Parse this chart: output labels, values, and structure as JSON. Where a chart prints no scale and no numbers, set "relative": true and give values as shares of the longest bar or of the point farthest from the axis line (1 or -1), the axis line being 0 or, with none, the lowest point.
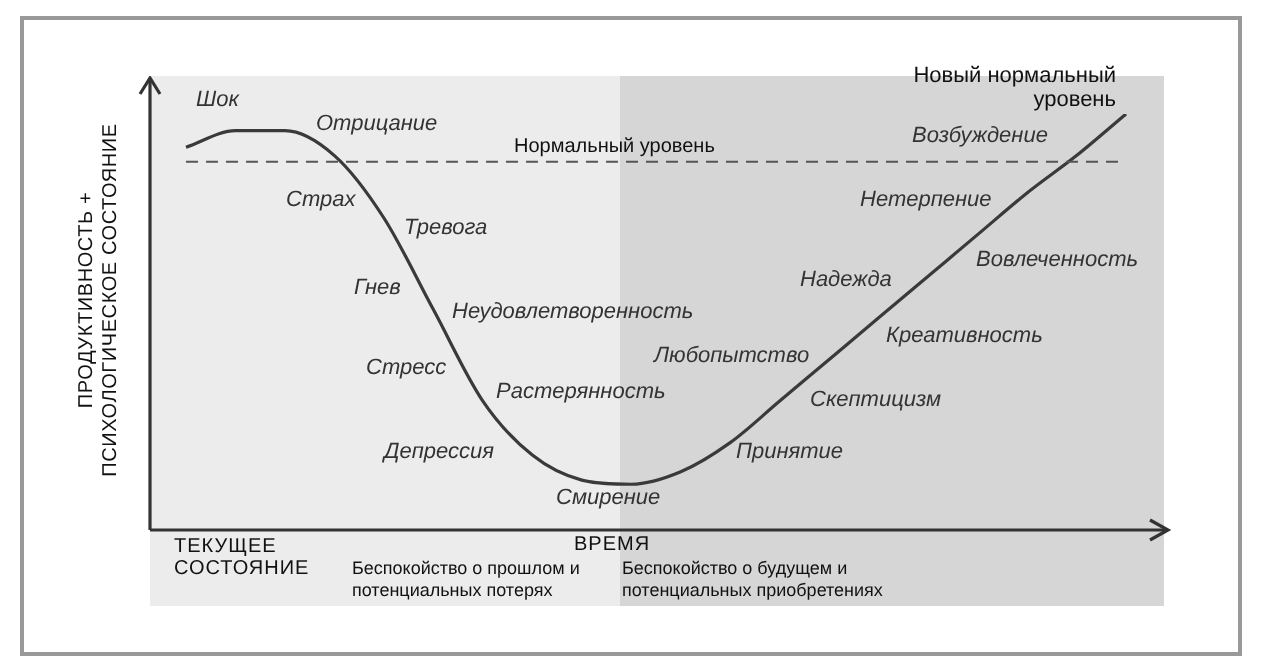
{
  "chart_data": {
    "type": "line",
    "relative": true,
    "ylabel": "ПРОДУКТИВНОСТЬ + ПСИХОЛОГИЧЕСКОЕ СОСТОЯНИЕ",
    "xlabel": "ВРЕМЯ",
    "categories": [
      null,
      null,
      null,
      null,
      null,
      null,
      null,
      null,
      null,
      null,
      null,
      null,
      null,
      null,
      null,
      null,
      null,
      null,
      null,
      null
    ],
    "series": [
      {
        "color": "#3a3a3a",
        "values": [
          0.92,
          0.96,
          0.96,
          0.9,
          0.75,
          0.53,
          0.31,
          0.18,
          0.12,
          0.11,
          0.14,
          0.21,
          0.31,
          0.41,
          0.51,
          0.61,
          0.71,
          0.81,
          0.9,
          1
        ]
      }
    ],
    "ref_lines": [
      {
        "axis": "y",
        "value": 0.885,
        "label": "Нормальный уровень",
        "color": "#555555",
        "line_style": "dashed"
      }
    ],
    "annotations": [
      "Шок",
      "Отрицание",
      "Страх",
      "Тревога",
      "Гнев",
      "Неудовлетворенность",
      "Стресс",
      "Растерянность",
      "Депрессия",
      "Смирение",
      "Принятие",
      "Скептицизм",
      "Любопытство",
      "Креативность",
      "Надежда",
      "Вовлеченность",
      "Нетерпение",
      "Возбуждение",
      "Новый нормальный уровень",
      "ТЕКУЩЕЕ СОСТОЯНИЕ",
      "Беспокойство о прошлом и потенциальных потерях",
      "Беспокойство о будущем и потенциальных приобретениях"
    ],
    "legend": false,
    "marker": "none",
    "line_style": "solid"
  }
}
